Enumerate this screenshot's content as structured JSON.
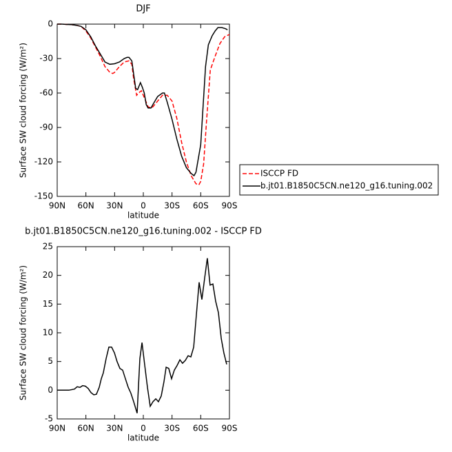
{
  "chart_data": [
    {
      "type": "line",
      "title": "DJF",
      "xlabel": "latitude",
      "ylabel": "Surface SW cloud forcing (W/m²)",
      "xlim": [
        90,
        -90
      ],
      "xticks": [
        {
          "value": 90,
          "label": "90N"
        },
        {
          "value": 60,
          "label": "60N"
        },
        {
          "value": 30,
          "label": "30N"
        },
        0,
        {
          "value": -30,
          "label": "30S"
        },
        {
          "value": -60,
          "label": "60S"
        },
        {
          "value": -90,
          "label": "90S"
        }
      ],
      "ylim": [
        -150,
        0
      ],
      "yticks": [
        -150,
        -120,
        -90,
        -60,
        -30,
        0
      ],
      "legend": "outside-right-bottom",
      "series": [
        {
          "name": "ISCCP FD",
          "color": "#ff0000",
          "dashed": true,
          "x": [
            90,
            85,
            80,
            75,
            70,
            65,
            60,
            55,
            50,
            45,
            40,
            35,
            32,
            30,
            25,
            20,
            15,
            12,
            10,
            7,
            5,
            2,
            0,
            -3,
            -5,
            -8,
            -10,
            -15,
            -20,
            -25,
            -30,
            -35,
            -40,
            -45,
            -50,
            -55,
            -58,
            -60,
            -63,
            -66,
            -70,
            -75,
            -80,
            -85,
            -90
          ],
          "values": [
            0,
            0,
            -0.3,
            -0.5,
            -1,
            -2,
            -6,
            -12,
            -20,
            -28,
            -37,
            -42,
            -43,
            -42,
            -37,
            -33,
            -32,
            -35,
            -48,
            -62,
            -60,
            -58,
            -62,
            -68,
            -72,
            -73,
            -72,
            -67,
            -62,
            -62,
            -67,
            -82,
            -103,
            -120,
            -132,
            -139,
            -140,
            -137,
            -122,
            -85,
            -40,
            -28,
            -17,
            -11,
            -9
          ]
        },
        {
          "name": "b.jt01.B1850C5CN.ne120_g16.tuning.002",
          "color": "#000000",
          "dashed": false,
          "x": [
            90,
            85,
            80,
            75,
            70,
            65,
            60,
            55,
            50,
            45,
            40,
            35,
            30,
            25,
            20,
            17,
            15,
            12,
            10,
            8,
            6,
            3,
            1,
            -1,
            -3,
            -5,
            -8,
            -10,
            -15,
            -20,
            -22,
            -25,
            -30,
            -35,
            -40,
            -45,
            -50,
            -53,
            -55,
            -60,
            -65,
            -68,
            -72,
            -75,
            -78,
            -82,
            -86,
            -88
          ],
          "values": [
            0,
            0,
            -0.3,
            -0.5,
            -1,
            -2,
            -5,
            -11,
            -19,
            -26,
            -33,
            -35,
            -34.5,
            -33,
            -30,
            -29,
            -29,
            -32,
            -44,
            -56,
            -57,
            -51,
            -55,
            -60,
            -70,
            -73,
            -73,
            -70,
            -63,
            -60,
            -60,
            -68,
            -83,
            -100,
            -115,
            -125,
            -130,
            -132,
            -129,
            -105,
            -37,
            -18,
            -10,
            -6,
            -3,
            -3,
            -4,
            -5
          ]
        }
      ]
    },
    {
      "type": "line",
      "title": "b.jt01.B1850C5CN.ne120_g16.tuning.002 - ISCCP FD",
      "xlabel": "latitude",
      "ylabel": "Surface SW cloud forcing (W/m²)",
      "xlim": [
        90,
        -90
      ],
      "xticks": [
        {
          "value": 90,
          "label": "90N"
        },
        {
          "value": 60,
          "label": "60N"
        },
        {
          "value": 30,
          "label": "30N"
        },
        0,
        {
          "value": -30,
          "label": "30S"
        },
        {
          "value": -60,
          "label": "60S"
        },
        {
          "value": -90,
          "label": "90S"
        }
      ],
      "ylim": [
        -5,
        25
      ],
      "yticks": [
        -5,
        0,
        5,
        10,
        15,
        20,
        25
      ],
      "series": [
        {
          "color": "#000000",
          "dashed": false,
          "x": [
            90,
            77.8,
            72,
            69.1,
            66.2,
            63.4,
            60.5,
            57.6,
            54.7,
            51.8,
            49,
            46.1,
            43.9,
            41.8,
            38.9,
            36,
            33.1,
            30.2,
            27.4,
            24.5,
            21.6,
            18.7,
            15.8,
            13,
            10.1,
            7.9,
            6.5,
            3.6,
            1.4,
            -1.4,
            -4.3,
            -7.2,
            -10.1,
            -13,
            -15.8,
            -18.7,
            -21.6,
            -23.8,
            -26.6,
            -29.5,
            -32.4,
            -35.3,
            -38.2,
            -41,
            -43.9,
            -46.8,
            -49.7,
            -52.6,
            -55.4,
            -58.3,
            -61.2,
            -64.1,
            -66.9,
            -69.8,
            -72.7,
            -75.6,
            -78.5,
            -81.4,
            -84.2,
            -87.1
          ],
          "values": [
            0,
            0,
            0.2,
            0.6,
            0.5,
            0.8,
            0.7,
            0.3,
            -0.4,
            -0.8,
            -0.7,
            0.5,
            2,
            3,
            5.5,
            7.5,
            7.5,
            6.5,
            5,
            3.8,
            3.5,
            2,
            0.5,
            -0.5,
            -2,
            -3.2,
            -4,
            5.5,
            8.3,
            4.5,
            0.5,
            -2.8,
            -2,
            -1.5,
            -2,
            -1,
            1.5,
            4,
            3.8,
            2,
            3.5,
            4.3,
            5.3,
            4.7,
            5.2,
            6,
            5.8,
            7.5,
            13,
            18.8,
            15.8,
            19.5,
            23,
            18.3,
            18.5,
            15.5,
            13.5,
            9,
            6.5,
            4.5
          ]
        }
      ]
    }
  ]
}
